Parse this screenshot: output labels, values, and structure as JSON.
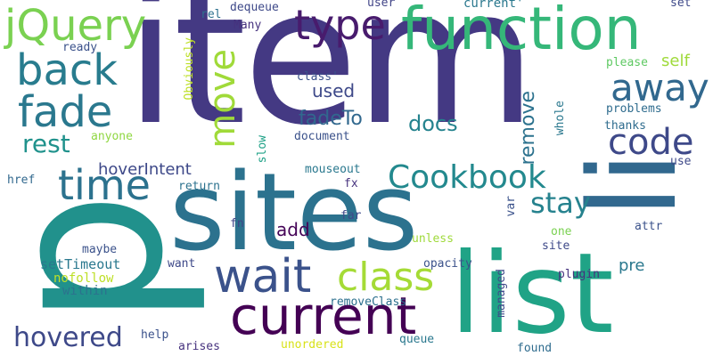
{
  "words": [
    {
      "text": "item",
      "color": "#443983"
    },
    {
      "text": "p",
      "color": "#21918c"
    },
    {
      "text": "sites",
      "color": "#2c728e"
    },
    {
      "text": "list",
      "color": "#20a386"
    },
    {
      "text": "li",
      "color": "#31688e"
    },
    {
      "text": "function",
      "color": "#35b779"
    },
    {
      "text": "current",
      "color": "#440154"
    },
    {
      "text": "wait",
      "color": "#3b528b"
    },
    {
      "text": "jQuery",
      "color": "#7ad151"
    },
    {
      "text": "back",
      "color": "#287c8e"
    },
    {
      "text": "fade",
      "color": "#2a788e"
    },
    {
      "text": "time",
      "color": "#2c728e"
    },
    {
      "text": "type",
      "color": "#481b6d"
    },
    {
      "text": "move",
      "color": "#a0da39"
    },
    {
      "text": "away",
      "color": "#31688e"
    },
    {
      "text": "class",
      "color": "#a5db36"
    },
    {
      "text": "Cookbook",
      "color": "#23898e"
    },
    {
      "text": "code",
      "color": "#3e4989"
    },
    {
      "text": "stay",
      "color": "#26828e"
    },
    {
      "text": "hovered",
      "color": "#3e4989"
    },
    {
      "text": "rest",
      "color": "#20928c"
    },
    {
      "text": "docs",
      "color": "#25838e"
    },
    {
      "text": "fadeTo",
      "color": "#31688e"
    },
    {
      "text": "used",
      "color": "#3e4989"
    },
    {
      "text": "remove",
      "color": "#2c728e"
    },
    {
      "text": "add",
      "color": "#450457"
    },
    {
      "text": "hoverIntent",
      "color": "#3e4989"
    },
    {
      "text": "setTimeout",
      "color": "#2a788e"
    },
    {
      "text": "nofollow",
      "color": "#bddf26"
    },
    {
      "text": "within",
      "color": "#2c728e"
    },
    {
      "text": "want",
      "color": "#3e4989"
    },
    {
      "text": "maybe",
      "color": "#3b528b"
    },
    {
      "text": "fn",
      "color": "#414487"
    },
    {
      "text": "far",
      "color": "#3e4989"
    },
    {
      "text": "fx",
      "color": "#46327e"
    },
    {
      "text": "href",
      "color": "#31688e"
    },
    {
      "text": "return",
      "color": "#2c728e"
    },
    {
      "text": "mouseout",
      "color": "#2a788e"
    },
    {
      "text": "document",
      "color": "#3b528b"
    },
    {
      "text": "slow",
      "color": "#1fa187"
    },
    {
      "text": "anyone",
      "color": "#90d743"
    },
    {
      "text": "Obviously",
      "color": "#bddf26"
    },
    {
      "text": "ready",
      "color": "#3b528b"
    },
    {
      "text": "rel",
      "color": "#2d708e"
    },
    {
      "text": "dequeue",
      "color": "#3e4989"
    },
    {
      "text": "Many",
      "color": "#46327e"
    },
    {
      "text": "user",
      "color": "#414487"
    },
    {
      "text": "current'",
      "color": "#2a788e"
    },
    {
      "text": "class'",
      "color": "#3b528b"
    },
    {
      "text": "set",
      "color": "#3e4989"
    },
    {
      "text": "self",
      "color": "#9fda3a"
    },
    {
      "text": "please",
      "color": "#5ec962"
    },
    {
      "text": "whole",
      "color": "#2a788e"
    },
    {
      "text": "problems",
      "color": "#2f6c8e"
    },
    {
      "text": "thanks",
      "color": "#2f6c8e"
    },
    {
      "text": "use",
      "color": "#3e4989"
    },
    {
      "text": "var",
      "color": "#3b528b"
    },
    {
      "text": "one",
      "color": "#7ad151"
    },
    {
      "text": "attr",
      "color": "#3b528b"
    },
    {
      "text": "unless",
      "color": "#9fda3a"
    },
    {
      "text": "site",
      "color": "#3e4989"
    },
    {
      "text": "plugin",
      "color": "#46327e"
    },
    {
      "text": "pre",
      "color": "#2a788e"
    },
    {
      "text": "opacity",
      "color": "#3b528b"
    },
    {
      "text": "removeClass",
      "color": "#2d708e"
    },
    {
      "text": "managed",
      "color": "#3e4989"
    },
    {
      "text": "queue",
      "color": "#2a788e"
    },
    {
      "text": "found",
      "color": "#2f6c8e"
    },
    {
      "text": "unordered",
      "color": "#d8e219"
    },
    {
      "text": "arises",
      "color": "#46327e"
    },
    {
      "text": "help",
      "color": "#3b528b"
    }
  ]
}
